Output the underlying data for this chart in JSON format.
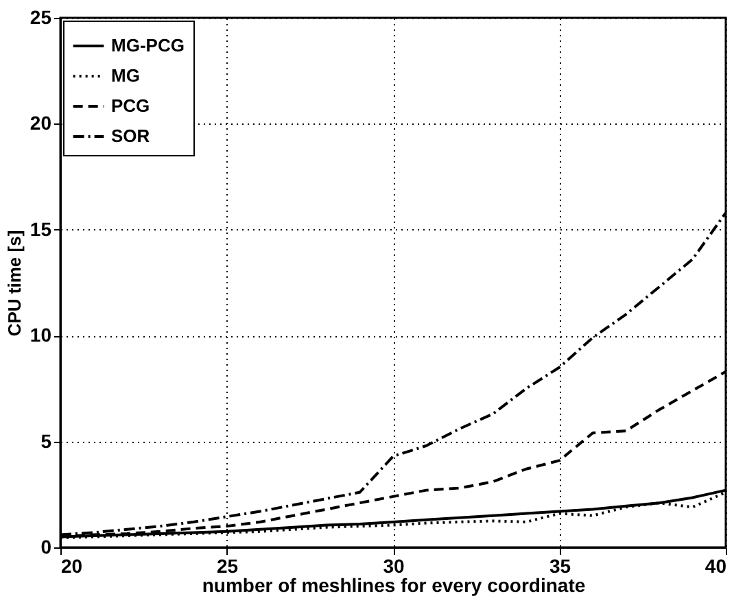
{
  "chart_data": {
    "type": "line",
    "xlabel": "number of meshlines for every coordinate",
    "ylabel": "CPU time [s]",
    "x": [
      20,
      21,
      22,
      23,
      24,
      25,
      26,
      27,
      28,
      29,
      30,
      31,
      32,
      33,
      34,
      35,
      36,
      37,
      38,
      39,
      40
    ],
    "series": [
      {
        "name": "MG-PCG",
        "color": "#000000",
        "line_style": "solid",
        "values": [
          0.5,
          0.55,
          0.6,
          0.65,
          0.7,
          0.75,
          0.85,
          0.95,
          1.05,
          1.1,
          1.2,
          1.3,
          1.4,
          1.5,
          1.6,
          1.7,
          1.8,
          1.95,
          2.1,
          2.35,
          2.7
        ]
      },
      {
        "name": "MG",
        "color": "#000000",
        "line_style": "dotted",
        "values": [
          0.45,
          0.5,
          0.55,
          0.6,
          0.65,
          0.7,
          0.75,
          0.85,
          0.95,
          1.0,
          1.05,
          1.15,
          1.2,
          1.25,
          1.2,
          1.6,
          1.5,
          1.9,
          2.1,
          1.9,
          2.6
        ]
      },
      {
        "name": "PCG",
        "color": "#000000",
        "line_style": "dashed",
        "values": [
          0.5,
          0.6,
          0.65,
          0.75,
          0.9,
          1.0,
          1.2,
          1.5,
          1.8,
          2.1,
          2.4,
          2.7,
          2.8,
          3.1,
          3.7,
          4.1,
          5.4,
          5.5,
          6.5,
          7.4,
          8.3
        ]
      },
      {
        "name": "SOR",
        "color": "#000000",
        "line_style": "dashdot",
        "values": [
          0.6,
          0.7,
          0.85,
          1.0,
          1.2,
          1.45,
          1.7,
          2.0,
          2.3,
          2.6,
          4.3,
          4.8,
          5.6,
          6.3,
          7.5,
          8.5,
          9.9,
          11.0,
          12.3,
          13.6,
          15.8
        ]
      }
    ],
    "xlim": [
      20,
      40
    ],
    "xticks": [
      20,
      25,
      30,
      35,
      40
    ],
    "ylim": [
      0,
      25
    ],
    "yticks": [
      0,
      5,
      10,
      15,
      20,
      25
    ],
    "grid": true,
    "legend": "top left",
    "marker": "none"
  }
}
